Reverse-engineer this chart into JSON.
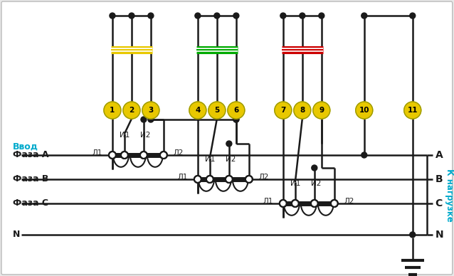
{
  "bg_color": "#e8e8e8",
  "white": "#ffffff",
  "line_color": "#1a1a1a",
  "yellow_color": "#e8c800",
  "green_color": "#00aa00",
  "red_color": "#cc0000",
  "cyan_color": "#00aacc",
  "vvod_label": "Ввод",
  "k_nagruzke_label": "К нагрузке",
  "phase_A_label": "Фаза A",
  "phase_B_label": "Фаза B",
  "phase_C_label": "Фаза C",
  "N_label": "N",
  "terminal_numbers": [
    "1",
    "2",
    "3",
    "4",
    "5",
    "6",
    "7",
    "8",
    "9",
    "10",
    "11"
  ]
}
